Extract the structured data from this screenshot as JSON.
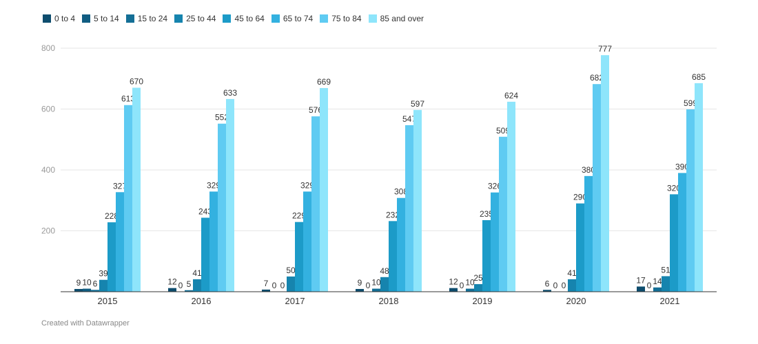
{
  "footer": {
    "credit": "Created with Datawrapper"
  },
  "chart_data": {
    "type": "bar",
    "categories": [
      "2015",
      "2016",
      "2017",
      "2018",
      "2019",
      "2020",
      "2021"
    ],
    "ylim": [
      0,
      800
    ],
    "yticks": [
      200,
      400,
      600,
      800
    ],
    "grid": true,
    "legend_position": "top-left",
    "series": [
      {
        "name": "0 to 4",
        "color": "#0e4d6e",
        "values": [
          9,
          12,
          7,
          9,
          12,
          6,
          17
        ]
      },
      {
        "name": "5 to 14",
        "color": "#115d82",
        "values": [
          10,
          0,
          0,
          0,
          0,
          0,
          0
        ]
      },
      {
        "name": "15 to 24",
        "color": "#146f96",
        "values": [
          6,
          5,
          0,
          10,
          10,
          0,
          14
        ]
      },
      {
        "name": "25 to 44",
        "color": "#1684ae",
        "values": [
          39,
          41,
          50,
          48,
          25,
          41,
          51
        ]
      },
      {
        "name": "45 to 64",
        "color": "#1c9bc8",
        "values": [
          228,
          243,
          229,
          232,
          235,
          290,
          320
        ]
      },
      {
        "name": "65 to 74",
        "color": "#33b1e0",
        "values": [
          327,
          329,
          329,
          308,
          326,
          380,
          390
        ]
      },
      {
        "name": "75 to 84",
        "color": "#5fcbf2",
        "values": [
          613,
          552,
          576,
          547,
          509,
          682,
          599
        ]
      },
      {
        "name": "85 and over",
        "color": "#8ee5fb",
        "values": [
          670,
          633,
          669,
          597,
          624,
          777,
          685
        ]
      }
    ]
  }
}
